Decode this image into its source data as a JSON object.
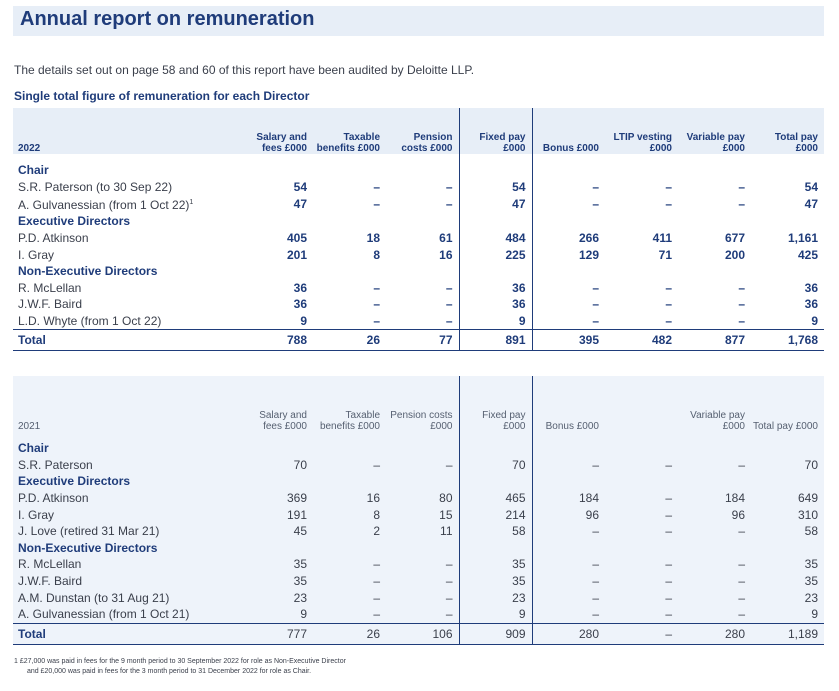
{
  "page": {
    "title": "Annual report on remuneration",
    "intro": "The details set out on page 58 and 60 of this report have been audited by Deloitte LLP.",
    "subtitle": "Single total figure of remuneration for each Director"
  },
  "table_2022": {
    "year": "2022",
    "headers": [
      "Salary and fees £000",
      "Taxable benefits £000",
      "Pension costs £000",
      "Fixed pay £000",
      "Bonus £000",
      "LTIP vesting £000",
      "Variable pay £000",
      "Total pay £000"
    ],
    "rows": [
      {
        "name": "Chair",
        "group": true
      },
      {
        "name": "S.R. Paterson (to 30 Sep 22)",
        "values": [
          "54",
          "–",
          "–",
          "54",
          "–",
          "–",
          "–",
          "54"
        ]
      },
      {
        "name": "A. Gulvanessian (from 1 Oct 22)",
        "sup": "1",
        "values": [
          "47",
          "–",
          "–",
          "47",
          "–",
          "–",
          "–",
          "47"
        ]
      },
      {
        "name": "Executive Directors",
        "group": true
      },
      {
        "name": "P.D. Atkinson",
        "values": [
          "405",
          "18",
          "61",
          "484",
          "266",
          "411",
          "677",
          "1,161"
        ]
      },
      {
        "name": "I. Gray",
        "values": [
          "201",
          "8",
          "16",
          "225",
          "129",
          "71",
          "200",
          "425"
        ]
      },
      {
        "name": "Non-Executive Directors",
        "group": true
      },
      {
        "name": "R. McLellan",
        "values": [
          "36",
          "–",
          "–",
          "36",
          "–",
          "–",
          "–",
          "36"
        ]
      },
      {
        "name": "J.W.F. Baird",
        "values": [
          "36",
          "–",
          "–",
          "36",
          "–",
          "–",
          "–",
          "36"
        ]
      },
      {
        "name": "L.D. Whyte (from 1 Oct 22)",
        "values": [
          "9",
          "–",
          "–",
          "9",
          "–",
          "–",
          "–",
          "9"
        ]
      }
    ],
    "total": {
      "name": "Total",
      "values": [
        "788",
        "26",
        "77",
        "891",
        "395",
        "482",
        "877",
        "1,768"
      ]
    }
  },
  "table_2021": {
    "year": "2021",
    "headers": [
      "Salary and fees £000",
      "Taxable benefits £000",
      "Pension costs £000",
      "Fixed pay £000",
      "Bonus £000",
      "",
      "Variable pay £000",
      "Total pay £000"
    ],
    "rows": [
      {
        "name": "Chair",
        "group": true
      },
      {
        "name": "S.R. Paterson",
        "values": [
          "70",
          "–",
          "–",
          "70",
          "–",
          "–",
          "–",
          "70"
        ]
      },
      {
        "name": "Executive Directors",
        "group": true
      },
      {
        "name": "P.D. Atkinson",
        "values": [
          "369",
          "16",
          "80",
          "465",
          "184",
          "–",
          "184",
          "649"
        ]
      },
      {
        "name": "I. Gray",
        "values": [
          "191",
          "8",
          "15",
          "214",
          "96",
          "–",
          "96",
          "310"
        ]
      },
      {
        "name": "J. Love (retired 31 Mar 21)",
        "values": [
          "45",
          "2",
          "11",
          "58",
          "–",
          "–",
          "–",
          "58"
        ]
      },
      {
        "name": "Non-Executive Directors",
        "group": true
      },
      {
        "name": "R. McLellan",
        "values": [
          "35",
          "–",
          "–",
          "35",
          "–",
          "–",
          "–",
          "35"
        ]
      },
      {
        "name": "J.W.F. Baird",
        "values": [
          "35",
          "–",
          "–",
          "35",
          "–",
          "–",
          "–",
          "35"
        ]
      },
      {
        "name": "A.M. Dunstan (to 31 Aug 21)",
        "values": [
          "23",
          "–",
          "–",
          "23",
          "–",
          "–",
          "–",
          "23"
        ]
      },
      {
        "name": "A. Gulvanessian (from 1 Oct 21)",
        "values": [
          "9",
          "–",
          "–",
          "9",
          "–",
          "–",
          "–",
          "9"
        ]
      }
    ],
    "total": {
      "name": "Total",
      "values": [
        "777",
        "26",
        "106",
        "909",
        "280",
        "–",
        "280",
        "1,189"
      ]
    }
  },
  "footnote": {
    "line1": "1  £27,000 was paid in fees for the 9 month period to 30 September 2022 for role as Non-Executive Director",
    "line2": "and £20,000 was paid in fees for the 3 month period to 31 December 2022 for role as Chair."
  }
}
